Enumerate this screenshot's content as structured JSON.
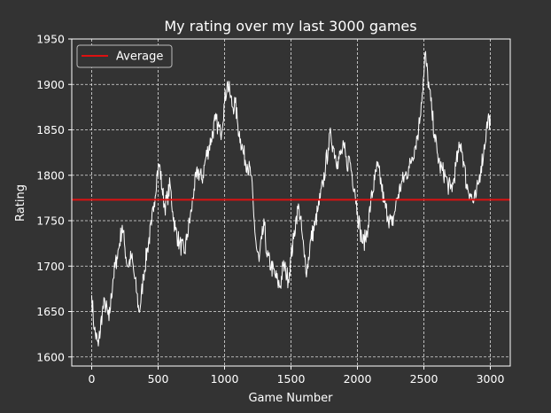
{
  "chart_data": {
    "type": "line",
    "title": "My rating over my last 3000 games",
    "xlabel": "Game Number",
    "ylabel": "Rating",
    "xlim": [
      -150,
      3150
    ],
    "ylim": [
      1590,
      1950
    ],
    "xticks": [
      0,
      500,
      1000,
      1500,
      2000,
      2500,
      3000
    ],
    "yticks": [
      1600,
      1650,
      1700,
      1750,
      1800,
      1850,
      1900,
      1950
    ],
    "grid": true,
    "grid_style": "dashed",
    "legend_placement": "top-left",
    "background": "#333333",
    "text_color": "#ffffff",
    "series": [
      {
        "color": "#ffffff",
        "x": [
          0,
          20,
          50,
          80,
          100,
          130,
          160,
          190,
          210,
          230,
          250,
          270,
          300,
          320,
          340,
          355,
          370,
          390,
          420,
          450,
          470,
          490,
          510,
          530,
          550,
          570,
          590,
          610,
          630,
          660,
          700,
          720,
          750,
          770,
          800,
          830,
          860,
          900,
          930,
          950,
          970,
          1000,
          1020,
          1040,
          1060,
          1080,
          1100,
          1120,
          1140,
          1170,
          1200,
          1220,
          1240,
          1260,
          1280,
          1300,
          1320,
          1350,
          1380,
          1400,
          1420,
          1440,
          1460,
          1480,
          1500,
          1520,
          1540,
          1560,
          1580,
          1600,
          1620,
          1650,
          1680,
          1700,
          1720,
          1740,
          1760,
          1780,
          1800,
          1820,
          1850,
          1880,
          1900,
          1920,
          1940,
          1960,
          1980,
          2000,
          2020,
          2040,
          2060,
          2080,
          2100,
          2130,
          2150,
          2180,
          2200,
          2230,
          2260,
          2280,
          2300,
          2330,
          2360,
          2390,
          2410,
          2430,
          2460,
          2480,
          2500,
          2510,
          2520,
          2540,
          2560,
          2580,
          2600,
          2620,
          2640,
          2660,
          2680,
          2700,
          2720,
          2740,
          2760,
          2780,
          2800,
          2820,
          2850,
          2870,
          2890,
          2910,
          2930,
          2950,
          2970,
          2990,
          3000
        ],
        "y": [
          1668,
          1630,
          1612,
          1650,
          1660,
          1640,
          1685,
          1710,
          1725,
          1745,
          1720,
          1700,
          1710,
          1690,
          1670,
          1650,
          1660,
          1690,
          1720,
          1745,
          1770,
          1800,
          1812,
          1785,
          1765,
          1775,
          1790,
          1760,
          1740,
          1725,
          1715,
          1735,
          1760,
          1785,
          1805,
          1795,
          1820,
          1840,
          1860,
          1855,
          1845,
          1880,
          1902,
          1890,
          1875,
          1880,
          1855,
          1840,
          1825,
          1812,
          1800,
          1755,
          1720,
          1705,
          1730,
          1745,
          1710,
          1700,
          1690,
          1682,
          1678,
          1700,
          1695,
          1685,
          1710,
          1730,
          1755,
          1765,
          1740,
          1710,
          1695,
          1730,
          1745,
          1760,
          1775,
          1790,
          1810,
          1830,
          1845,
          1830,
          1815,
          1825,
          1830,
          1810,
          1820,
          1800,
          1785,
          1760,
          1740,
          1725,
          1730,
          1745,
          1770,
          1795,
          1810,
          1790,
          1770,
          1755,
          1745,
          1760,
          1775,
          1790,
          1800,
          1808,
          1820,
          1830,
          1850,
          1880,
          1910,
          1935,
          1920,
          1895,
          1870,
          1845,
          1825,
          1810,
          1805,
          1800,
          1790,
          1785,
          1790,
          1810,
          1825,
          1835,
          1815,
          1790,
          1780,
          1770,
          1775,
          1790,
          1810,
          1825,
          1850,
          1865,
          1855
        ]
      },
      {
        "name": "Average",
        "color": "#dd1111",
        "y_constant": 1773
      }
    ]
  }
}
